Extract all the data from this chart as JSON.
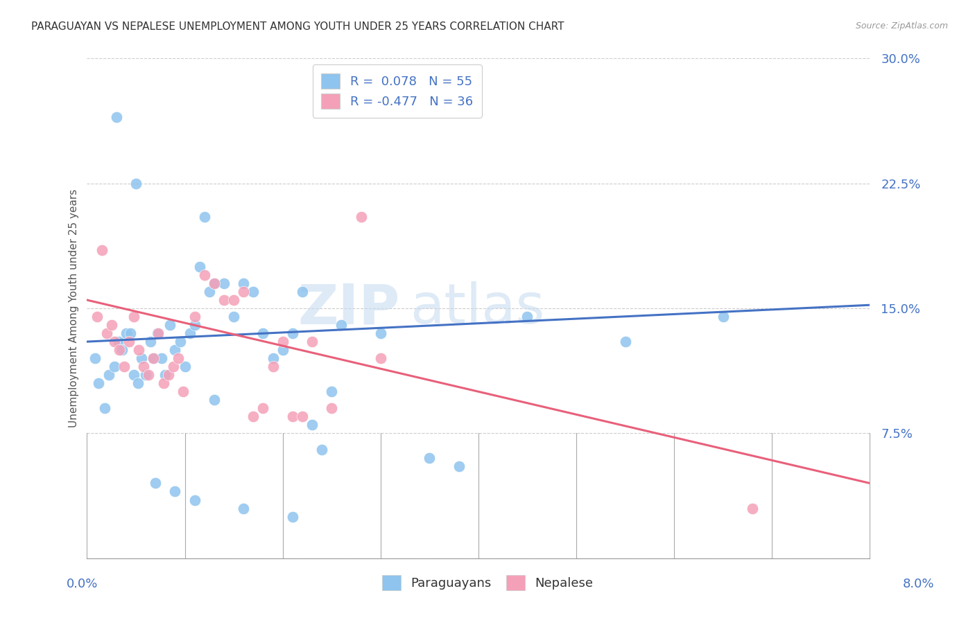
{
  "title": "PARAGUAYAN VS NEPALESE UNEMPLOYMENT AMONG YOUTH UNDER 25 YEARS CORRELATION CHART",
  "source": "Source: ZipAtlas.com",
  "ylabel": "Unemployment Among Youth under 25 years",
  "xlim": [
    0.0,
    8.0
  ],
  "ylim": [
    0.0,
    30.0
  ],
  "yticks": [
    0.0,
    7.5,
    15.0,
    22.5,
    30.0
  ],
  "ytick_labels": [
    "",
    "7.5%",
    "15.0%",
    "22.5%",
    "30.0%"
  ],
  "paraguayan_R": 0.078,
  "paraguayan_N": 55,
  "nepalese_R": -0.477,
  "nepalese_N": 36,
  "blue_color": "#8EC4EE",
  "pink_color": "#F4A0B8",
  "blue_line_color": "#4472C4",
  "pink_line_color": "#E8607A",
  "blue_line_y0": 13.0,
  "blue_line_y1": 15.2,
  "pink_line_y0": 15.5,
  "pink_line_y1": 4.5,
  "paraguayan_x": [
    0.08,
    0.12,
    0.18,
    0.22,
    0.28,
    0.32,
    0.36,
    0.4,
    0.44,
    0.48,
    0.52,
    0.56,
    0.6,
    0.65,
    0.68,
    0.72,
    0.76,
    0.8,
    0.85,
    0.9,
    0.95,
    1.0,
    1.05,
    1.1,
    1.15,
    1.2,
    1.25,
    1.3,
    1.4,
    1.5,
    1.6,
    1.7,
    1.8,
    1.9,
    2.0,
    2.1,
    2.2,
    2.3,
    2.4,
    2.5,
    2.6,
    3.0,
    3.5,
    3.8,
    4.5,
    5.5,
    6.5,
    0.3,
    0.5,
    0.7,
    0.9,
    1.1,
    1.3,
    1.6,
    2.1
  ],
  "paraguayan_y": [
    12.0,
    10.5,
    9.0,
    11.0,
    11.5,
    13.0,
    12.5,
    13.5,
    13.5,
    11.0,
    10.5,
    12.0,
    11.0,
    13.0,
    12.0,
    13.5,
    12.0,
    11.0,
    14.0,
    12.5,
    13.0,
    11.5,
    13.5,
    14.0,
    17.5,
    20.5,
    16.0,
    16.5,
    16.5,
    14.5,
    16.5,
    16.0,
    13.5,
    12.0,
    12.5,
    13.5,
    16.0,
    8.0,
    6.5,
    10.0,
    14.0,
    13.5,
    6.0,
    5.5,
    14.5,
    13.0,
    14.5,
    26.5,
    22.5,
    4.5,
    4.0,
    3.5,
    9.5,
    3.0,
    2.5
  ],
  "nepalese_x": [
    0.1,
    0.15,
    0.2,
    0.25,
    0.28,
    0.33,
    0.38,
    0.43,
    0.48,
    0.53,
    0.58,
    0.63,
    0.68,
    0.73,
    0.78,
    0.83,
    0.88,
    0.93,
    0.98,
    1.1,
    1.2,
    1.3,
    1.4,
    1.5,
    1.6,
    1.7,
    1.8,
    1.9,
    2.0,
    2.1,
    2.2,
    2.3,
    2.5,
    2.8,
    3.0,
    6.8
  ],
  "nepalese_y": [
    14.5,
    18.5,
    13.5,
    14.0,
    13.0,
    12.5,
    11.5,
    13.0,
    14.5,
    12.5,
    11.5,
    11.0,
    12.0,
    13.5,
    10.5,
    11.0,
    11.5,
    12.0,
    10.0,
    14.5,
    17.0,
    16.5,
    15.5,
    15.5,
    16.0,
    8.5,
    9.0,
    11.5,
    13.0,
    8.5,
    8.5,
    13.0,
    9.0,
    20.5,
    12.0,
    3.0
  ]
}
